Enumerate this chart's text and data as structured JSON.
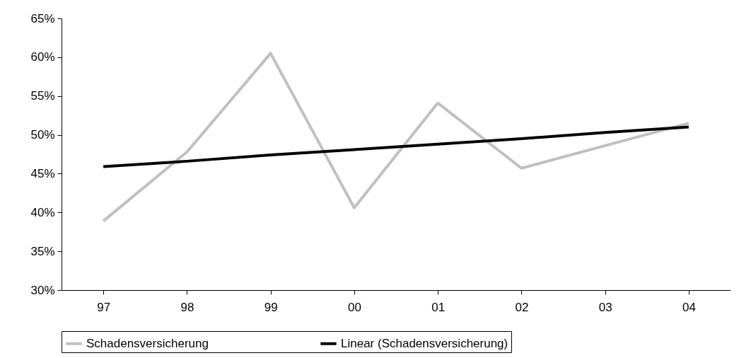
{
  "chart_data": {
    "type": "line",
    "categories": [
      "97",
      "98",
      "99",
      "00",
      "01",
      "02",
      "03",
      "04"
    ],
    "series": [
      {
        "name": "Schadensversicherung",
        "color": "#c0c0c0",
        "values": [
          38.9,
          47.8,
          60.5,
          40.6,
          54.1,
          45.7,
          48.6,
          51.5
        ]
      },
      {
        "name": "Linear (Schadensversicherung)",
        "color": "#000000",
        "values": [
          45.9,
          46.6,
          47.4,
          48.1,
          48.8,
          49.5,
          50.3,
          51.0
        ]
      }
    ],
    "ylim": [
      30,
      65
    ],
    "yticks": [
      {
        "value": 30,
        "label": "30%"
      },
      {
        "value": 35,
        "label": "35%"
      },
      {
        "value": 40,
        "label": "40%"
      },
      {
        "value": 45,
        "label": "45%"
      },
      {
        "value": 50,
        "label": "50%"
      },
      {
        "value": 55,
        "label": "55%"
      },
      {
        "value": 60,
        "label": "60%"
      },
      {
        "value": 65,
        "label": "65%"
      }
    ],
    "grid": false,
    "legend": "bottom",
    "marker": "none",
    "line_style": "solid"
  }
}
